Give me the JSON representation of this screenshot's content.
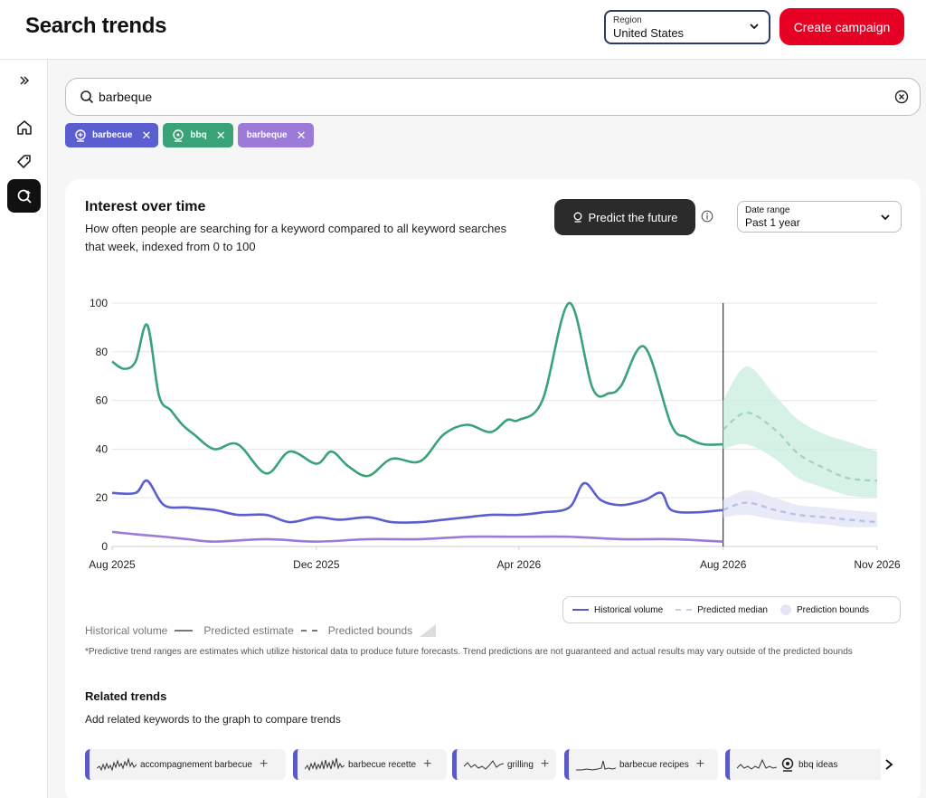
{
  "header": {
    "title": "Search trends",
    "region_label": "Region",
    "region_value": "United States",
    "create_button": "Create campaign"
  },
  "sidebar": {
    "items": [
      {
        "icon": "chevrons-right-icon"
      },
      {
        "icon": "home-icon"
      },
      {
        "icon": "tag-sparkle-icon"
      },
      {
        "icon": "trends-search-icon",
        "active": true
      }
    ]
  },
  "search": {
    "value": "barbeque"
  },
  "keyword_chips": [
    {
      "label": "barbecue",
      "color": "#5a5ed1"
    },
    {
      "label": "bbq",
      "color": "#3aa277"
    },
    {
      "label": "barbeque",
      "color": "#9b7ad8"
    }
  ],
  "card": {
    "title": "Interest over time",
    "subtitle": "How often people are searching for a keyword compared to all keyword searches that week, indexed from 0 to 100",
    "predict_button": "Predict the future",
    "date_range_label": "Date range",
    "date_range_value": "Past 1 year"
  },
  "chart_data": {
    "type": "line",
    "ylim": [
      0,
      100
    ],
    "y_ticks": [
      "0",
      "20",
      "40",
      "60",
      "80",
      "100"
    ],
    "x_ticks": [
      "Aug 2025",
      "Dec 2025",
      "Apr 2026",
      "Aug 2026",
      "Nov 2026"
    ],
    "xlim": [
      "2025-08-01",
      "2026-11-01"
    ],
    "forecast_start": "2026-08-01",
    "grid": true,
    "series": [
      {
        "keyword": "bbq",
        "color": "#3aa277",
        "x": [
          "2025-08-01",
          "2025-08-08",
          "2025-08-15",
          "2025-08-22",
          "2025-08-29",
          "2025-09-05",
          "2025-09-12",
          "2025-09-19",
          "2025-10-01",
          "2025-10-15",
          "2025-11-01",
          "2025-11-15",
          "2025-12-01",
          "2025-12-10",
          "2025-12-20",
          "2026-01-01",
          "2026-01-15",
          "2026-02-01",
          "2026-02-15",
          "2026-03-01",
          "2026-03-15",
          "2026-03-25",
          "2026-04-01",
          "2026-04-15",
          "2026-05-01",
          "2026-05-15",
          "2026-05-25",
          "2026-06-01",
          "2026-06-15",
          "2026-07-01",
          "2026-07-10",
          "2026-07-20",
          "2026-08-01"
        ],
        "values": [
          76,
          73,
          76,
          91,
          62,
          56,
          50,
          46,
          40,
          42,
          30,
          39,
          34,
          39,
          33,
          29,
          36,
          35,
          46,
          50,
          47,
          52,
          52,
          60,
          100,
          65,
          63,
          66,
          82,
          50,
          45,
          42,
          42
        ]
      },
      {
        "keyword": "barbecue",
        "color": "#5a5ed1",
        "x": [
          "2025-08-01",
          "2025-08-15",
          "2025-08-22",
          "2025-09-01",
          "2025-09-15",
          "2025-10-01",
          "2025-10-15",
          "2025-11-01",
          "2025-11-15",
          "2025-12-01",
          "2025-12-15",
          "2026-01-01",
          "2026-01-15",
          "2026-02-01",
          "2026-02-15",
          "2026-03-01",
          "2026-03-15",
          "2026-04-01",
          "2026-04-15",
          "2026-05-01",
          "2026-05-10",
          "2026-05-20",
          "2026-06-01",
          "2026-06-15",
          "2026-06-25",
          "2026-07-01",
          "2026-07-15",
          "2026-08-01"
        ],
        "values": [
          22,
          22,
          27,
          17,
          16,
          15,
          13,
          13,
          10,
          12,
          11,
          12,
          10,
          10,
          11,
          12,
          13,
          13,
          14,
          16,
          26,
          19,
          17,
          19,
          22,
          15,
          14,
          15
        ]
      },
      {
        "keyword": "barbeque",
        "color": "#9b7ad8",
        "x": [
          "2025-08-01",
          "2025-08-15",
          "2025-09-01",
          "2025-09-15",
          "2025-10-01",
          "2025-11-01",
          "2025-12-01",
          "2026-01-01",
          "2026-02-01",
          "2026-03-01",
          "2026-04-01",
          "2026-05-01",
          "2026-06-01",
          "2026-07-01",
          "2026-08-01"
        ],
        "values": [
          6,
          5,
          4,
          3,
          2,
          3,
          2,
          3,
          3,
          4,
          4,
          4,
          3,
          3,
          2
        ]
      }
    ],
    "predictions": [
      {
        "keyword": "bbq",
        "color": "#3aa277",
        "x": [
          "2026-08-01",
          "2026-08-15",
          "2026-09-01",
          "2026-09-15",
          "2026-10-01",
          "2026-10-15",
          "2026-11-01"
        ],
        "median": [
          48,
          55,
          48,
          38,
          32,
          28,
          27
        ],
        "upper": [
          60,
          74,
          62,
          52,
          46,
          43,
          39
        ],
        "lower": [
          40,
          42,
          36,
          28,
          24,
          21,
          20
        ]
      },
      {
        "keyword": "barbecue",
        "color": "#5a5ed1",
        "x": [
          "2026-08-01",
          "2026-08-15",
          "2026-09-01",
          "2026-09-15",
          "2026-10-01",
          "2026-10-15",
          "2026-11-01"
        ],
        "median": [
          15,
          18,
          15,
          13,
          12,
          11,
          10
        ],
        "upper": [
          19,
          23,
          20,
          17,
          16,
          15,
          14
        ],
        "lower": [
          12,
          13,
          11,
          10,
          9,
          8,
          8
        ]
      }
    ]
  },
  "legend": {
    "historical": "Historical volume",
    "median": "Predicted median",
    "bounds": "Prediction bounds"
  },
  "key": {
    "historical": "Historical volume",
    "estimate": "Predicted estimate",
    "bounds": "Predicted bounds"
  },
  "disclaimer": "*Predictive trend ranges are estimates which utilize historical data to produce future forecasts. Trend predictions are not guaranteed and actual results may vary outside of the predicted bounds",
  "related": {
    "title": "Related trends",
    "subtitle": "Add related keywords to the graph to compare trends",
    "items": [
      {
        "label": "accompagnement barbecue"
      },
      {
        "label": "barbecue recette"
      },
      {
        "label": "grilling"
      },
      {
        "label": "barbecue recipes"
      },
      {
        "label": "bbq ideas"
      }
    ]
  }
}
